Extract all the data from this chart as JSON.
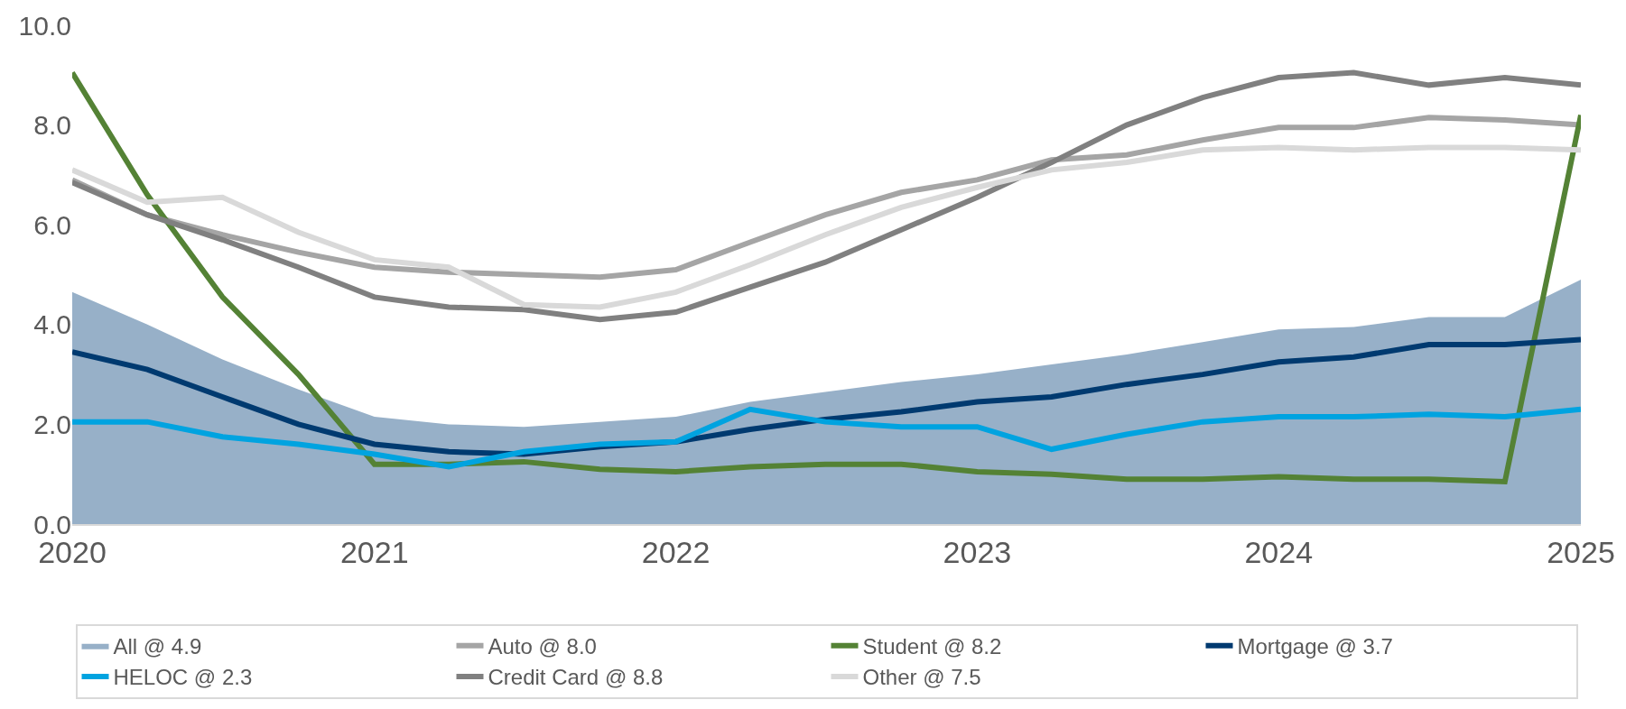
{
  "chart_data": {
    "type": "line",
    "x": [
      "2020-01",
      "2020-04",
      "2020-07",
      "2020-10",
      "2021-01",
      "2021-04",
      "2021-07",
      "2021-10",
      "2022-01",
      "2022-04",
      "2022-07",
      "2022-10",
      "2023-01",
      "2023-04",
      "2023-07",
      "2023-10",
      "2024-01",
      "2024-04",
      "2024-07",
      "2024-10",
      "2025-01"
    ],
    "series": [
      {
        "name": "All @ 4.9",
        "type": "area",
        "color": "#97b0c8",
        "values": [
          4.65,
          4.0,
          3.3,
          2.7,
          2.15,
          2.0,
          1.95,
          2.05,
          2.15,
          2.45,
          2.65,
          2.85,
          3.0,
          3.2,
          3.4,
          3.65,
          3.9,
          3.95,
          4.15,
          4.15,
          4.9
        ]
      },
      {
        "name": "Auto @ 8.0",
        "color": "#a5a5a5",
        "values": [
          6.9,
          6.2,
          5.8,
          5.45,
          5.15,
          5.05,
          5.0,
          4.95,
          5.1,
          5.65,
          6.2,
          6.65,
          6.9,
          7.3,
          7.4,
          7.7,
          7.95,
          7.95,
          8.15,
          8.1,
          8.0
        ]
      },
      {
        "name": "Student @ 8.2",
        "color": "#548235",
        "values": [
          9.05,
          6.6,
          4.55,
          3.0,
          1.2,
          1.2,
          1.25,
          1.1,
          1.05,
          1.15,
          1.2,
          1.2,
          1.05,
          1.0,
          0.9,
          0.9,
          0.95,
          0.9,
          0.9,
          0.85,
          8.2
        ]
      },
      {
        "name": "Mortgage @ 3.7",
        "color": "#003a70",
        "values": [
          3.45,
          3.1,
          2.55,
          2.0,
          1.6,
          1.45,
          1.4,
          1.55,
          1.65,
          1.9,
          2.1,
          2.25,
          2.45,
          2.55,
          2.8,
          3.0,
          3.25,
          3.35,
          3.6,
          3.6,
          3.7
        ]
      },
      {
        "name": "HELOC @ 2.3",
        "color": "#00a3e0",
        "values": [
          2.05,
          2.05,
          1.75,
          1.6,
          1.4,
          1.15,
          1.45,
          1.6,
          1.65,
          2.3,
          2.05,
          1.95,
          1.95,
          1.5,
          1.8,
          2.05,
          2.15,
          2.15,
          2.2,
          2.15,
          2.3
        ]
      },
      {
        "name": "Credit Card @ 8.8",
        "color": "#808080",
        "values": [
          6.85,
          6.2,
          5.7,
          5.15,
          4.55,
          4.35,
          4.3,
          4.1,
          4.25,
          4.75,
          5.25,
          5.9,
          6.55,
          7.25,
          8.0,
          8.55,
          8.95,
          9.05,
          8.8,
          8.95,
          8.8
        ]
      },
      {
        "name": "Other @ 7.5",
        "color": "#d9d9d9",
        "values": [
          7.1,
          6.45,
          6.55,
          5.85,
          5.3,
          5.15,
          4.4,
          4.35,
          4.65,
          5.2,
          5.8,
          6.35,
          6.75,
          7.1,
          7.25,
          7.5,
          7.55,
          7.5,
          7.55,
          7.55,
          7.5
        ]
      }
    ],
    "xlim": [
      "2020-01",
      "2025-01"
    ],
    "xticks": [
      {
        "value": "2020-01",
        "label": "2020"
      },
      {
        "value": "2021-01",
        "label": "2021"
      },
      {
        "value": "2022-01",
        "label": "2022"
      },
      {
        "value": "2023-01",
        "label": "2023"
      },
      {
        "value": "2024-01",
        "label": "2024"
      },
      {
        "value": "2025-01",
        "label": "2025"
      }
    ],
    "ylim": [
      0,
      10
    ],
    "yticks": [
      {
        "value": 0,
        "label": "0.0"
      },
      {
        "value": 2,
        "label": "2.0"
      },
      {
        "value": 4,
        "label": "4.0"
      },
      {
        "value": 6,
        "label": "6.0"
      },
      {
        "value": 8,
        "label": "8.0"
      },
      {
        "value": 10,
        "label": "10.0"
      }
    ],
    "legend": "bottom",
    "line_style": "solid",
    "marker": "none"
  }
}
